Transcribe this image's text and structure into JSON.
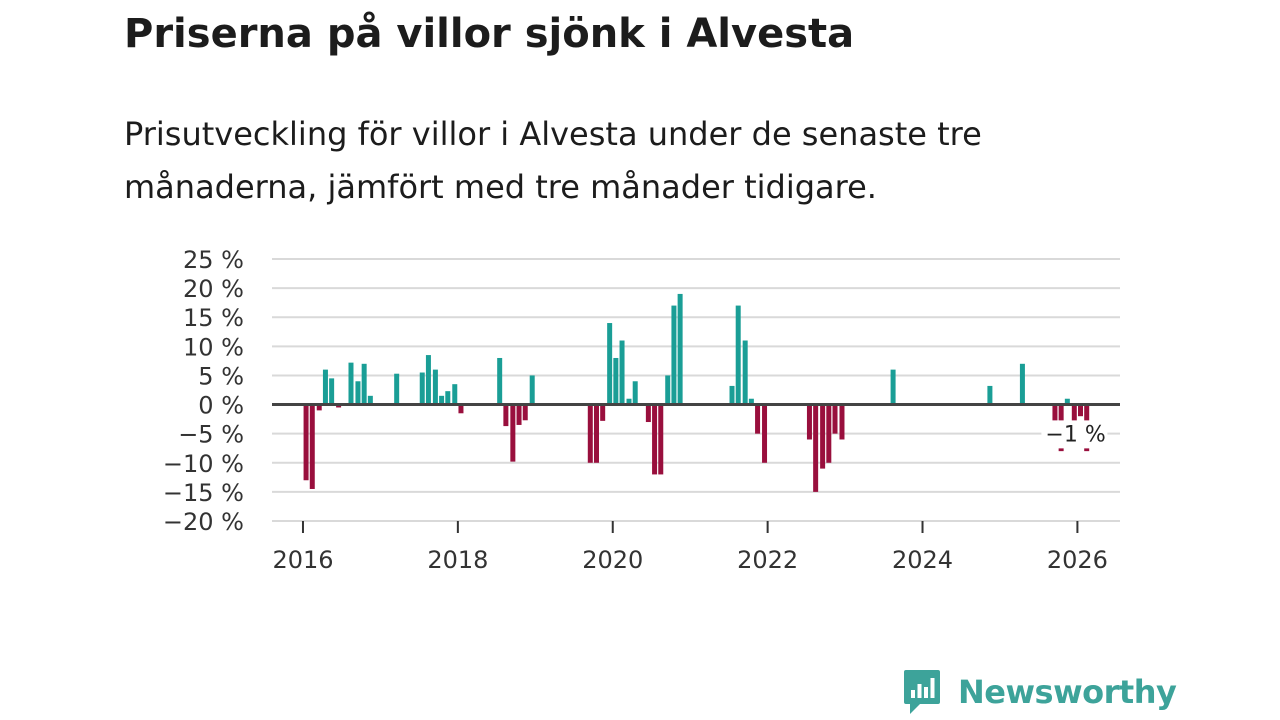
{
  "title": "Priserna på villor sjönk i Alvesta",
  "subtitle": "Prisutveckling för villor i Alvesta under de senaste tre månaderna, jämfört med tre månader tidigare.",
  "brand": {
    "name": "Newsworthy",
    "icon": "newsworthy-logo-icon"
  },
  "colors": {
    "positive": "#1a9e96",
    "negative": "#990f3d",
    "zero_line": "#444444",
    "grid": "#d9d9d9",
    "brand": "#3da39a"
  },
  "chart_data": {
    "type": "bar",
    "title": "Priserna på villor sjönk i Alvesta",
    "xlabel": "",
    "ylabel": "",
    "unit": "%",
    "xlim": [
      2015.6,
      2026.55
    ],
    "ylim": [
      -20,
      25
    ],
    "yticks": [
      25,
      20,
      15,
      10,
      5,
      0,
      -5,
      -10,
      -15,
      -20
    ],
    "ytick_labels": [
      "25 %",
      "20 %",
      "15 %",
      "10 %",
      "5 %",
      "0 %",
      "−5 %",
      "−10 %",
      "−15 %",
      "−20 %"
    ],
    "xticks": [
      2016,
      2018,
      2020,
      2022,
      2024,
      2026
    ],
    "xtick_labels": [
      "2016",
      "2018",
      "2020",
      "2022",
      "2024",
      "2026"
    ],
    "grid": true,
    "annotation": {
      "x": 2026.0,
      "y": -1,
      "text": "−1 %"
    },
    "series": [
      {
        "name": "Prisutveckling",
        "x": [
          2016.04,
          2016.12,
          2016.21,
          2016.29,
          2016.37,
          2016.46,
          2016.62,
          2016.71,
          2016.79,
          2016.87,
          2017.21,
          2017.54,
          2017.62,
          2017.71,
          2017.79,
          2017.87,
          2017.96,
          2018.04,
          2018.54,
          2018.62,
          2018.71,
          2018.79,
          2018.87,
          2018.96,
          2019.71,
          2019.79,
          2019.87,
          2019.96,
          2020.04,
          2020.12,
          2020.21,
          2020.29,
          2020.46,
          2020.54,
          2020.62,
          2020.71,
          2020.79,
          2020.87,
          2021.54,
          2021.62,
          2021.71,
          2021.79,
          2021.87,
          2021.96,
          2022.54,
          2022.62,
          2022.71,
          2022.79,
          2022.87,
          2022.96,
          2023.62,
          2024.87,
          2025.29,
          2025.71,
          2025.79,
          2025.87,
          2025.96,
          2026.04,
          2026.12
        ],
        "values": [
          -13,
          -14.5,
          -1,
          6,
          4.5,
          -0.5,
          7.2,
          4,
          7,
          1.5,
          5.3,
          5.5,
          8.5,
          6,
          1.5,
          2.3,
          3.5,
          -1.5,
          8,
          -3.7,
          -9.8,
          -3.5,
          -2.7,
          5,
          -10,
          -10,
          -2.8,
          14,
          8,
          11,
          1,
          4,
          -3,
          -12,
          -12,
          5,
          17,
          19,
          3.2,
          17,
          11,
          1,
          -5,
          -10,
          -6,
          -15,
          -11,
          -10,
          -5,
          -6,
          6,
          3.2,
          7,
          -6,
          -8,
          1,
          -3,
          -2,
          -8
        ]
      }
    ]
  }
}
